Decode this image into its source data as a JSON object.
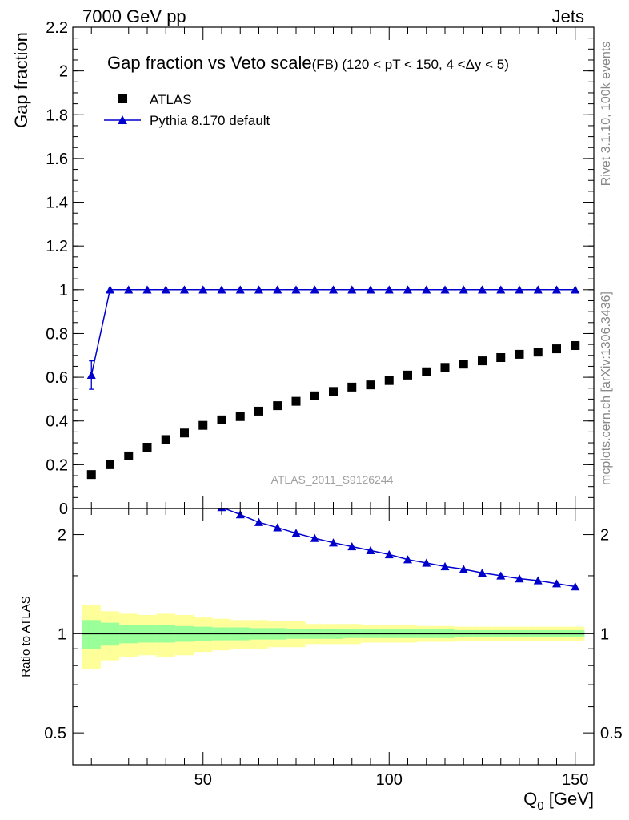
{
  "header": {
    "left": "7000 GeV pp",
    "right": "Jets"
  },
  "side_labels": {
    "top": "Rivet 3.1.10,  100k events",
    "bottom": "mcplots.cern.ch [arXiv:1306.3436]"
  },
  "colors": {
    "atlas": "#000000",
    "pythia": "#0000cc",
    "band_inner": "#99ff99",
    "band_outer": "#ffff99"
  },
  "chart_data": [
    {
      "id": "main",
      "type": "scatter",
      "title": "Gap fraction vs Veto scale",
      "subtitle": "(FB) (120 < pT < 150, 4 <Δy < 5)",
      "ylabel": "Gap fraction",
      "xlabel": "",
      "xlim": [
        15,
        155
      ],
      "ylim": [
        0,
        2.2
      ],
      "yticks": [
        0,
        0.2,
        0.4,
        0.6,
        0.8,
        1,
        1.2,
        1.4,
        1.6,
        1.8,
        2,
        2.2
      ],
      "ytick_labels": [
        "0",
        "0.2",
        "0.4",
        "0.6",
        "0.8",
        "1",
        "1.2",
        "1.4",
        "1.6",
        "1.8",
        "2",
        "2.2"
      ],
      "legend": {
        "placement": "top-left",
        "entries": [
          "ATLAS",
          "Pythia 8.170 default"
        ]
      },
      "annotation": "ATLAS_2011_S9126244",
      "x": [
        20,
        25,
        30,
        35,
        40,
        45,
        50,
        55,
        60,
        65,
        70,
        75,
        80,
        85,
        90,
        95,
        100,
        105,
        110,
        115,
        120,
        125,
        130,
        135,
        140,
        145,
        150
      ],
      "series": [
        {
          "name": "ATLAS",
          "marker": "square",
          "values": [
            0.155,
            0.2,
            0.24,
            0.28,
            0.315,
            0.345,
            0.38,
            0.405,
            0.42,
            0.445,
            0.47,
            0.49,
            0.515,
            0.535,
            0.555,
            0.565,
            0.585,
            0.61,
            0.625,
            0.645,
            0.66,
            0.675,
            0.69,
            0.705,
            0.715,
            0.73,
            0.745
          ]
        },
        {
          "name": "Pythia 8.170 default",
          "marker": "triangle",
          "values": [
            0.61,
            1,
            1,
            1,
            1,
            1,
            1,
            1,
            1,
            1,
            1,
            1,
            1,
            1,
            1,
            1,
            1,
            1,
            1,
            1,
            1,
            1,
            1,
            1,
            1,
            1,
            1
          ],
          "errors": [
            0.065,
            0,
            0,
            0,
            0,
            0,
            0,
            0,
            0,
            0,
            0,
            0,
            0,
            0,
            0,
            0,
            0,
            0,
            0,
            0,
            0,
            0,
            0,
            0,
            0,
            0,
            0
          ]
        }
      ]
    },
    {
      "id": "ratio",
      "type": "line",
      "ylabel": "Ratio to ATLAS",
      "xlabel": "Q",
      "xlabel_sub": "0",
      "xlabel_unit": " [GeV]",
      "xlim": [
        15,
        155
      ],
      "ylim": [
        0.4,
        2.4
      ],
      "scale": "log",
      "yticks": [
        0.5,
        1,
        2
      ],
      "ytick_labels": [
        "0.5",
        "1",
        "2"
      ],
      "xticks": [
        50,
        100,
        150
      ],
      "xtick_labels": [
        "50",
        "100",
        "150"
      ],
      "x": [
        55,
        60,
        65,
        70,
        75,
        80,
        85,
        90,
        95,
        100,
        105,
        110,
        115,
        120,
        125,
        130,
        135,
        140,
        145,
        150
      ],
      "series": [
        {
          "name": "Pythia 8.170 default / ATLAS",
          "values": [
            2.42,
            2.3,
            2.18,
            2.1,
            2.02,
            1.95,
            1.89,
            1.84,
            1.79,
            1.74,
            1.68,
            1.64,
            1.6,
            1.57,
            1.53,
            1.5,
            1.47,
            1.45,
            1.42,
            1.39
          ]
        }
      ],
      "bands": {
        "x_edges": [
          17.5,
          22.5,
          27.5,
          32.5,
          37.5,
          42.5,
          47.5,
          52.5,
          57.5,
          62.5,
          67.5,
          72.5,
          77.5,
          82.5,
          87.5,
          92.5,
          97.5,
          102.5,
          107.5,
          112.5,
          117.5,
          122.5,
          127.5,
          132.5,
          137.5,
          142.5,
          147.5,
          152.5
        ],
        "inner": [
          0.1,
          0.08,
          0.065,
          0.06,
          0.06,
          0.055,
          0.05,
          0.045,
          0.045,
          0.04,
          0.04,
          0.035,
          0.035,
          0.035,
          0.03,
          0.03,
          0.03,
          0.03,
          0.03,
          0.03,
          0.025,
          0.025,
          0.025,
          0.025,
          0.025,
          0.025,
          0.025
        ],
        "outer": [
          0.22,
          0.17,
          0.15,
          0.14,
          0.15,
          0.14,
          0.12,
          0.11,
          0.1,
          0.1,
          0.09,
          0.09,
          0.07,
          0.07,
          0.07,
          0.06,
          0.06,
          0.06,
          0.055,
          0.055,
          0.05,
          0.05,
          0.05,
          0.05,
          0.05,
          0.05,
          0.05
        ]
      }
    }
  ]
}
